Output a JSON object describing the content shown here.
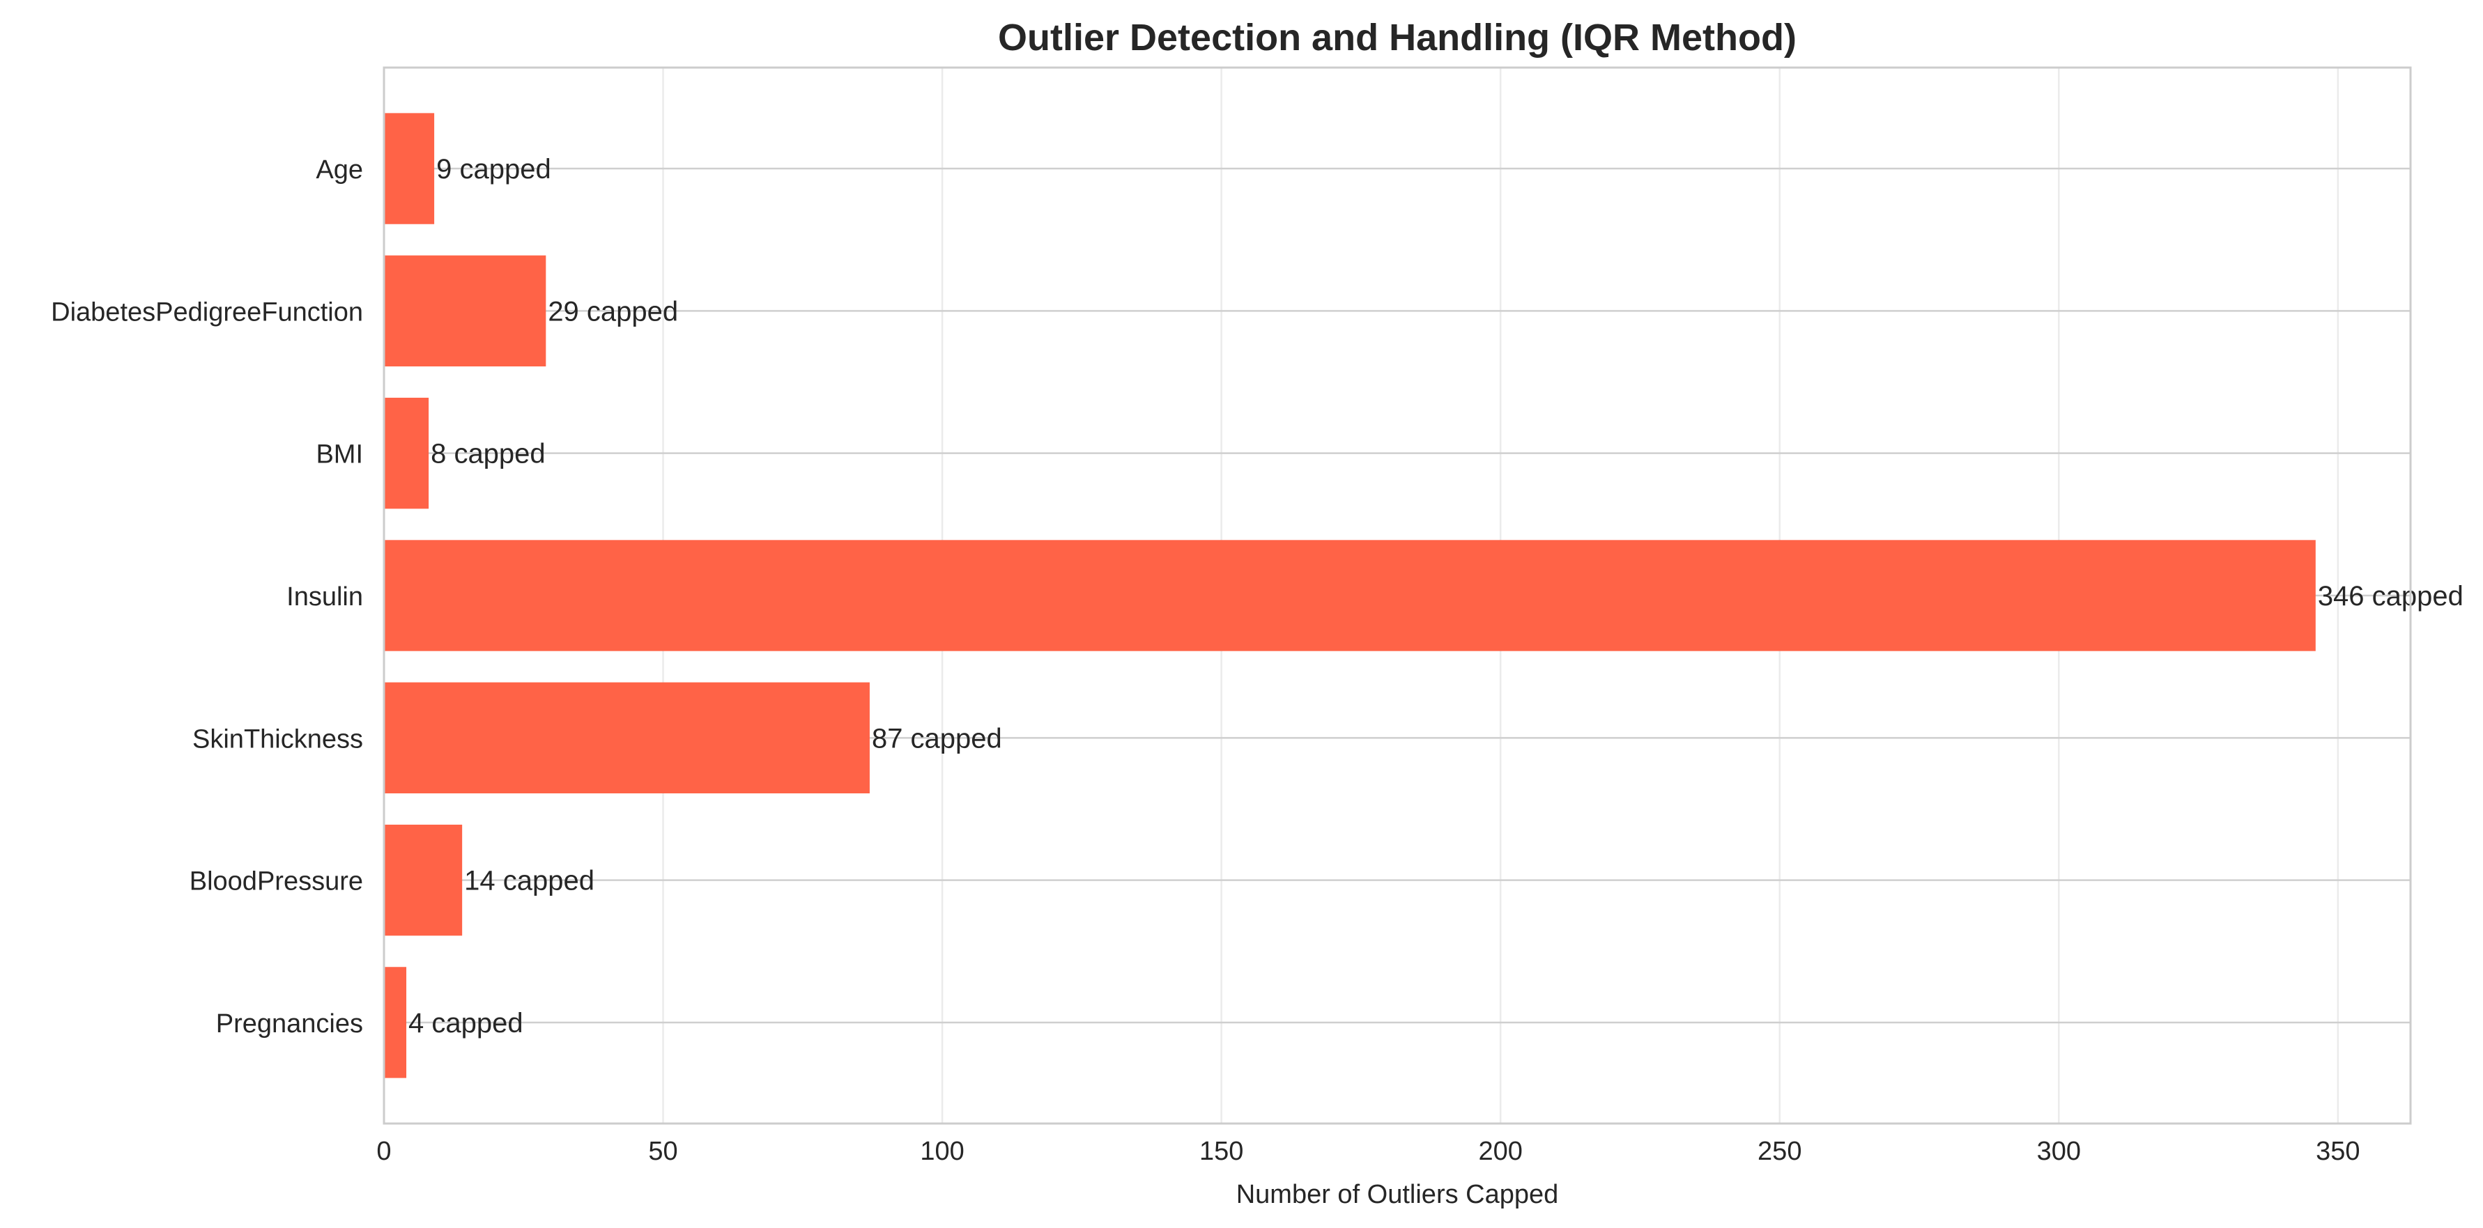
{
  "chart_data": {
    "type": "bar",
    "orientation": "horizontal",
    "title": "Outlier Detection and Handling (IQR Method)",
    "xlabel": "Number of Outliers Capped",
    "ylabel": "",
    "xlim": [
      0,
      363
    ],
    "xticks": [
      0,
      50,
      100,
      150,
      200,
      250,
      300,
      350
    ],
    "categories": [
      "Pregnancies",
      "BloodPressure",
      "SkinThickness",
      "Insulin",
      "BMI",
      "DiabetesPedigreeFunction",
      "Age"
    ],
    "values": [
      4,
      14,
      87,
      346,
      8,
      29,
      9
    ],
    "data_labels": [
      "4 capped",
      "14 capped",
      "87 capped",
      "346 capped",
      "8 capped",
      "29 capped",
      "9 capped"
    ],
    "bar_color": "#ff6347",
    "grid": true,
    "legend": "none"
  }
}
